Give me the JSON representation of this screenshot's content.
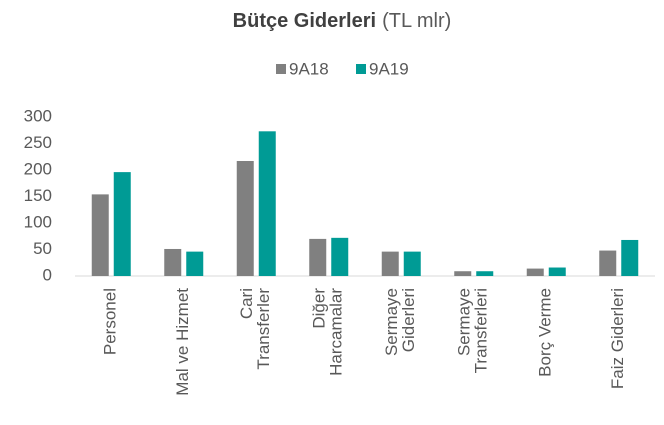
{
  "chart_data": {
    "type": "bar",
    "title": "Bütçe Giderleri",
    "title_unit": "(TL mlr)",
    "categories": [
      [
        "Personel"
      ],
      [
        "Mal ve Hizmet"
      ],
      [
        "Cari",
        "Transferler"
      ],
      [
        "Diğer",
        "Harcamalar"
      ],
      [
        "Sermaye",
        "Giderleri"
      ],
      [
        "Sermaye",
        "Transferleri"
      ],
      [
        "Borç Verme"
      ],
      [
        "Faiz Giderleri"
      ]
    ],
    "series": [
      {
        "name": "9A18",
        "color": "#808080",
        "values": [
          154,
          51,
          217,
          70,
          46,
          9,
          14,
          48
        ]
      },
      {
        "name": "9A19",
        "color": "#009b95",
        "values": [
          196,
          46,
          273,
          72,
          46,
          9,
          16,
          68
        ]
      }
    ],
    "ylim": [
      0,
      300
    ],
    "yticks": [
      0,
      50,
      100,
      150,
      200,
      250,
      300
    ],
    "grid": false,
    "legend": "top"
  }
}
